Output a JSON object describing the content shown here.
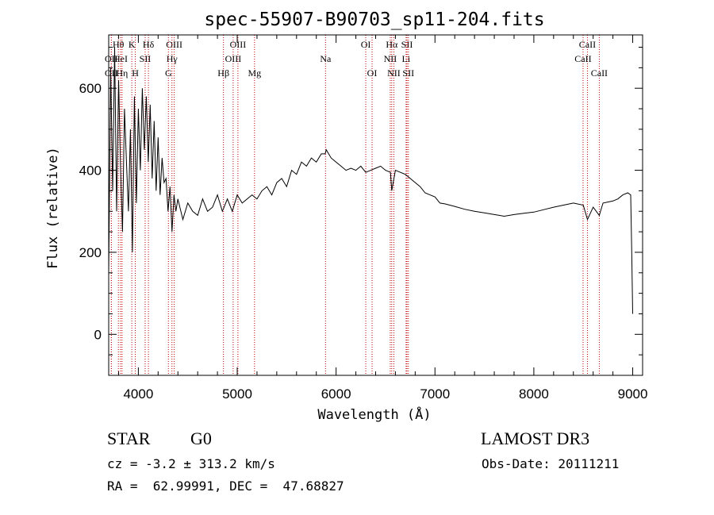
{
  "chart_data": {
    "type": "line",
    "title": "spec-55907-B90703_sp11-204.fits",
    "xlabel": "Wavelength (Å)",
    "ylabel": "Flux (relative)",
    "xlim": [
      3700,
      9100
    ],
    "ylim": [
      -100,
      730
    ],
    "xticks": [
      4000,
      5000,
      6000,
      7000,
      8000,
      9000
    ],
    "yticks": [
      0,
      200,
      400,
      600
    ],
    "grid": false,
    "legend": "none",
    "line_color": "#000000",
    "marker_color": "#c00000",
    "series": [
      {
        "x": [
          3700,
          3720,
          3740,
          3760,
          3780,
          3800,
          3820,
          3840,
          3860,
          3880,
          3900,
          3920,
          3940,
          3960,
          3980,
          4000,
          4020,
          4040,
          4060,
          4080,
          4100,
          4120,
          4140,
          4160,
          4180,
          4200,
          4220,
          4240,
          4260,
          4280,
          4300,
          4320,
          4340,
          4360,
          4380,
          4400,
          4450,
          4500,
          4550,
          4600,
          4650,
          4700,
          4750,
          4800,
          4850,
          4900,
          4950,
          5000,
          5050,
          5100,
          5150,
          5200,
          5250,
          5300,
          5350,
          5400,
          5450,
          5500,
          5550,
          5600,
          5650,
          5700,
          5750,
          5800,
          5850,
          5890,
          5900,
          5950,
          6000,
          6050,
          6100,
          6150,
          6200,
          6250,
          6300,
          6350,
          6400,
          6450,
          6500,
          6550,
          6563,
          6600,
          6650,
          6700,
          6750,
          6800,
          6850,
          6900,
          6950,
          7000,
          7050,
          7100,
          7150,
          7200,
          7300,
          7400,
          7500,
          7600,
          7650,
          7700,
          7800,
          7900,
          8000,
          8100,
          8200,
          8300,
          8400,
          8500,
          8542,
          8600,
          8662,
          8700,
          8800,
          8850,
          8900,
          8950,
          8980,
          8990,
          9000
        ],
        "values": [
          150,
          650,
          350,
          700,
          300,
          620,
          400,
          250,
          550,
          420,
          300,
          500,
          200,
          580,
          320,
          550,
          400,
          600,
          450,
          580,
          420,
          560,
          380,
          520,
          350,
          480,
          340,
          430,
          370,
          380,
          300,
          360,
          250,
          340,
          300,
          330,
          280,
          320,
          300,
          290,
          330,
          300,
          310,
          340,
          300,
          330,
          300,
          340,
          320,
          330,
          340,
          330,
          350,
          360,
          340,
          370,
          380,
          360,
          400,
          390,
          420,
          410,
          430,
          420,
          440,
          440,
          450,
          430,
          420,
          410,
          400,
          405,
          400,
          410,
          395,
          400,
          405,
          410,
          400,
          395,
          350,
          400,
          395,
          390,
          380,
          370,
          360,
          345,
          340,
          335,
          320,
          318,
          315,
          312,
          305,
          300,
          296,
          292,
          290,
          288,
          292,
          295,
          298,
          304,
          310,
          315,
          320,
          315,
          280,
          310,
          290,
          320,
          325,
          330,
          340,
          345,
          340,
          200,
          50
        ]
      }
    ],
    "spectral_lines": [
      {
        "label": "Hθ",
        "x": 3798,
        "row": 0
      },
      {
        "label": "OII",
        "x": 3727,
        "row": 1
      },
      {
        "label": "OII",
        "x": 3727,
        "row": 2
      },
      {
        "label": "HeI",
        "x": 3820,
        "row": 1
      },
      {
        "label": "Hη",
        "x": 3835,
        "row": 2
      },
      {
        "label": "K",
        "x": 3934,
        "row": 0
      },
      {
        "label": "SII",
        "x": 4069,
        "row": 1
      },
      {
        "label": "H",
        "x": 3969,
        "row": 2
      },
      {
        "label": "Hδ",
        "x": 4102,
        "row": 0
      },
      {
        "label": "OIII",
        "x": 4363,
        "row": 0
      },
      {
        "label": "Hγ",
        "x": 4340,
        "row": 1
      },
      {
        "label": "G",
        "x": 4304,
        "row": 2
      },
      {
        "label": "Hβ",
        "x": 4861,
        "row": 2
      },
      {
        "label": "OIII",
        "x": 5007,
        "row": 0
      },
      {
        "label": "OIII",
        "x": 4959,
        "row": 1
      },
      {
        "label": "Mg",
        "x": 5175,
        "row": 2
      },
      {
        "label": "Na",
        "x": 5893,
        "row": 1
      },
      {
        "label": "OI",
        "x": 6300,
        "row": 0
      },
      {
        "label": "OI",
        "x": 6364,
        "row": 2
      },
      {
        "label": "Hα",
        "x": 6563,
        "row": 0
      },
      {
        "label": "NII",
        "x": 6548,
        "row": 1
      },
      {
        "label": "NII",
        "x": 6584,
        "row": 2
      },
      {
        "label": "SII",
        "x": 6717,
        "row": 0
      },
      {
        "label": "Li",
        "x": 6708,
        "row": 1
      },
      {
        "label": "SII",
        "x": 6731,
        "row": 2
      },
      {
        "label": "CaII",
        "x": 8542,
        "row": 0
      },
      {
        "label": "CaII",
        "x": 8498,
        "row": 1
      },
      {
        "label": "CaII",
        "x": 8662,
        "row": 2
      }
    ]
  },
  "info": {
    "class": "STAR",
    "subclass": "G0",
    "survey": "LAMOST DR3",
    "cz": "cz = -3.2 ± 313.2 km/s",
    "obs_date": "Obs-Date: 20111211",
    "radec": "RA =  62.99991, DEC =  47.68827"
  }
}
